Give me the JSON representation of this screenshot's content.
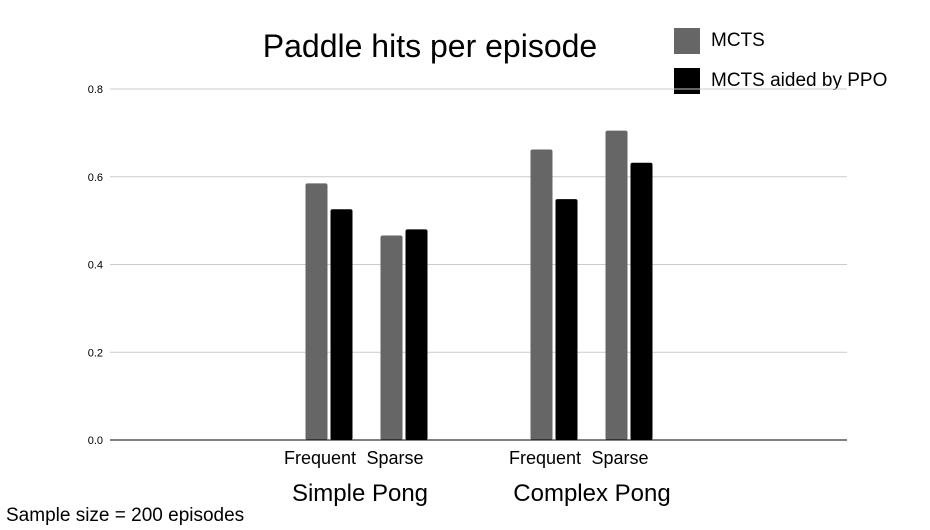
{
  "chart_data": {
    "type": "bar",
    "title": "Paddle hits per episode",
    "groups": [
      {
        "label": "Simple Pong",
        "categories": [
          "Frequent",
          "Sparse"
        ]
      },
      {
        "label": "Complex Pong",
        "categories": [
          "Frequent",
          "Sparse"
        ]
      }
    ],
    "categories": [
      "Frequent",
      "Sparse",
      "Frequent",
      "Sparse"
    ],
    "series": [
      {
        "name": "MCTS",
        "color": "#666666",
        "values": [
          0.585,
          0.466,
          0.662,
          0.705
        ]
      },
      {
        "name": "MCTS aided by PPO",
        "color": "#000000",
        "values": [
          0.526,
          0.48,
          0.549,
          0.632
        ]
      }
    ],
    "ylim": [
      0,
      0.8
    ],
    "yticks": [
      "0.0",
      "0.2",
      "0.4",
      "0.6",
      "0.8"
    ],
    "grid": true,
    "legend_position": "top-right",
    "xlabel": "",
    "ylabel": ""
  },
  "footnote": "Sample size = 200 episodes"
}
